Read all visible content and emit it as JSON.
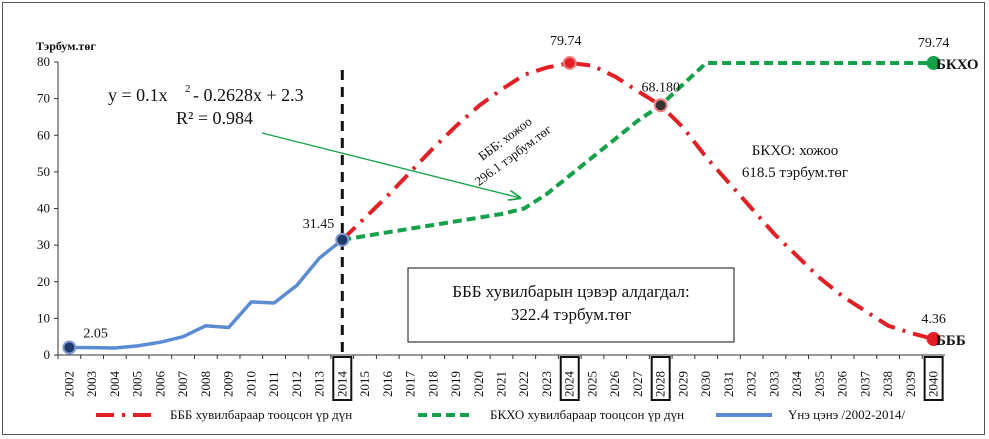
{
  "chart_data": {
    "type": "line",
    "ylabel": "Тэрбум.төг",
    "ylim": [
      0,
      80
    ],
    "yticks": [
      0,
      10,
      20,
      30,
      40,
      50,
      60,
      70,
      80
    ],
    "categories": [
      "2002",
      "2003",
      "2004",
      "2005",
      "2006",
      "2007",
      "2008",
      "2009",
      "2010",
      "2011",
      "2012",
      "2013",
      "2014",
      "2015",
      "2016",
      "2017",
      "2018",
      "2019",
      "2020",
      "2021",
      "2022",
      "2023",
      "2024",
      "2025",
      "2026",
      "2027",
      "2028",
      "2029",
      "2030",
      "2031",
      "2032",
      "2033",
      "2034",
      "2035",
      "2036",
      "2037",
      "2038",
      "2039",
      "2040"
    ],
    "highlighted_ticks": [
      "2014",
      "2024",
      "2028",
      "2040"
    ],
    "series": [
      {
        "name": "БББ хувилбараар тооцсон үр дүн",
        "color": "#e31e24",
        "style": "dash-dot",
        "x": [
          "2014",
          "2015",
          "2016",
          "2017",
          "2018",
          "2019",
          "2020",
          "2021",
          "2022",
          "2023",
          "2024",
          "2025",
          "2026",
          "2027",
          "2028",
          "2029",
          "2030",
          "2031",
          "2032",
          "2033",
          "2034",
          "2035",
          "2036",
          "2037",
          "2038",
          "2039",
          "2040"
        ],
        "values": [
          31.45,
          37.5,
          43.5,
          50,
          56.5,
          62.5,
          68,
          72.5,
          76.5,
          78.5,
          79.74,
          79,
          76,
          72,
          68.18,
          62,
          54,
          47,
          40,
          33,
          27,
          21,
          16,
          12,
          8,
          6,
          4.36
        ]
      },
      {
        "name": "БКХО хувилбараар тооцсон үр дүн",
        "color": "#15a04a",
        "style": "dash",
        "x": [
          "2014",
          "2015",
          "2016",
          "2017",
          "2018",
          "2019",
          "2020",
          "2021",
          "2022",
          "2023",
          "2024",
          "2025",
          "2026",
          "2027",
          "2028",
          "2029",
          "2030",
          "2031",
          "2032",
          "2033",
          "2034",
          "2035",
          "2036",
          "2037",
          "2038",
          "2039",
          "2040"
        ],
        "values": [
          31.45,
          32.5,
          33.5,
          34.5,
          35.5,
          36.5,
          37.5,
          38.5,
          40,
          44,
          49,
          54,
          59,
          64,
          68.18,
          74,
          79.74,
          79.74,
          79.74,
          79.74,
          79.74,
          79.74,
          79.74,
          79.74,
          79.74,
          79.74,
          79.74
        ]
      },
      {
        "name": "Үнэ цэнэ /2002-2014/",
        "color": "#5b8bd2",
        "style": "solid",
        "x": [
          "2002",
          "2003",
          "2004",
          "2005",
          "2006",
          "2007",
          "2008",
          "2009",
          "2010",
          "2011",
          "2012",
          "2013",
          "2014"
        ],
        "values": [
          2.05,
          2.0,
          1.9,
          2.5,
          3.5,
          5.0,
          8.0,
          7.5,
          14.5,
          14.2,
          19.0,
          26.5,
          31.45
        ]
      }
    ],
    "markers": [
      {
        "x": "2002",
        "y": 2.05,
        "label": "2.05",
        "fill": "#1f3a6b",
        "ring": "#7f9ad0"
      },
      {
        "x": "2014",
        "y": 31.45,
        "label": "31.45",
        "fill": "#1f3a6b",
        "ring": "#7f9ad0"
      },
      {
        "x": "2024",
        "y": 79.74,
        "label": "79.74",
        "fill": "#e31e24",
        "ring": "#f08080"
      },
      {
        "x": "2028",
        "y": 68.18,
        "label": "68.180",
        "fill": "#333333",
        "ring": "#f08080"
      },
      {
        "x": "2040",
        "y": 79.74,
        "label": "79.74",
        "fill": "#15a04a",
        "ring": "#15a04a"
      },
      {
        "x": "2040",
        "y": 4.36,
        "label": "4.36",
        "fill": "#e31e24",
        "ring": "#e31e24"
      }
    ],
    "series_end_labels": {
      "green": "БКХО",
      "red": "БББ"
    },
    "annotations": {
      "trend_equation": "y = 0.1x",
      "trend_exponent": "2",
      "trend_equation_rest": " - 0.2628x + 2.3",
      "r_squared": "R² = 0.984",
      "bbb_total_line1": "БББ: хожоо",
      "bbb_total_line2": "296.1 тэрбум.төг",
      "bkho_total_line1": "БКХО: хожоо",
      "bkho_total_line2": "618.5 тэрбум.төг",
      "loss_box_line1": "БББ хувилбарын цэвэр алдагдал:",
      "loss_box_line2": "322.4 тэрбум.төг"
    },
    "legend_position": "bottom"
  }
}
